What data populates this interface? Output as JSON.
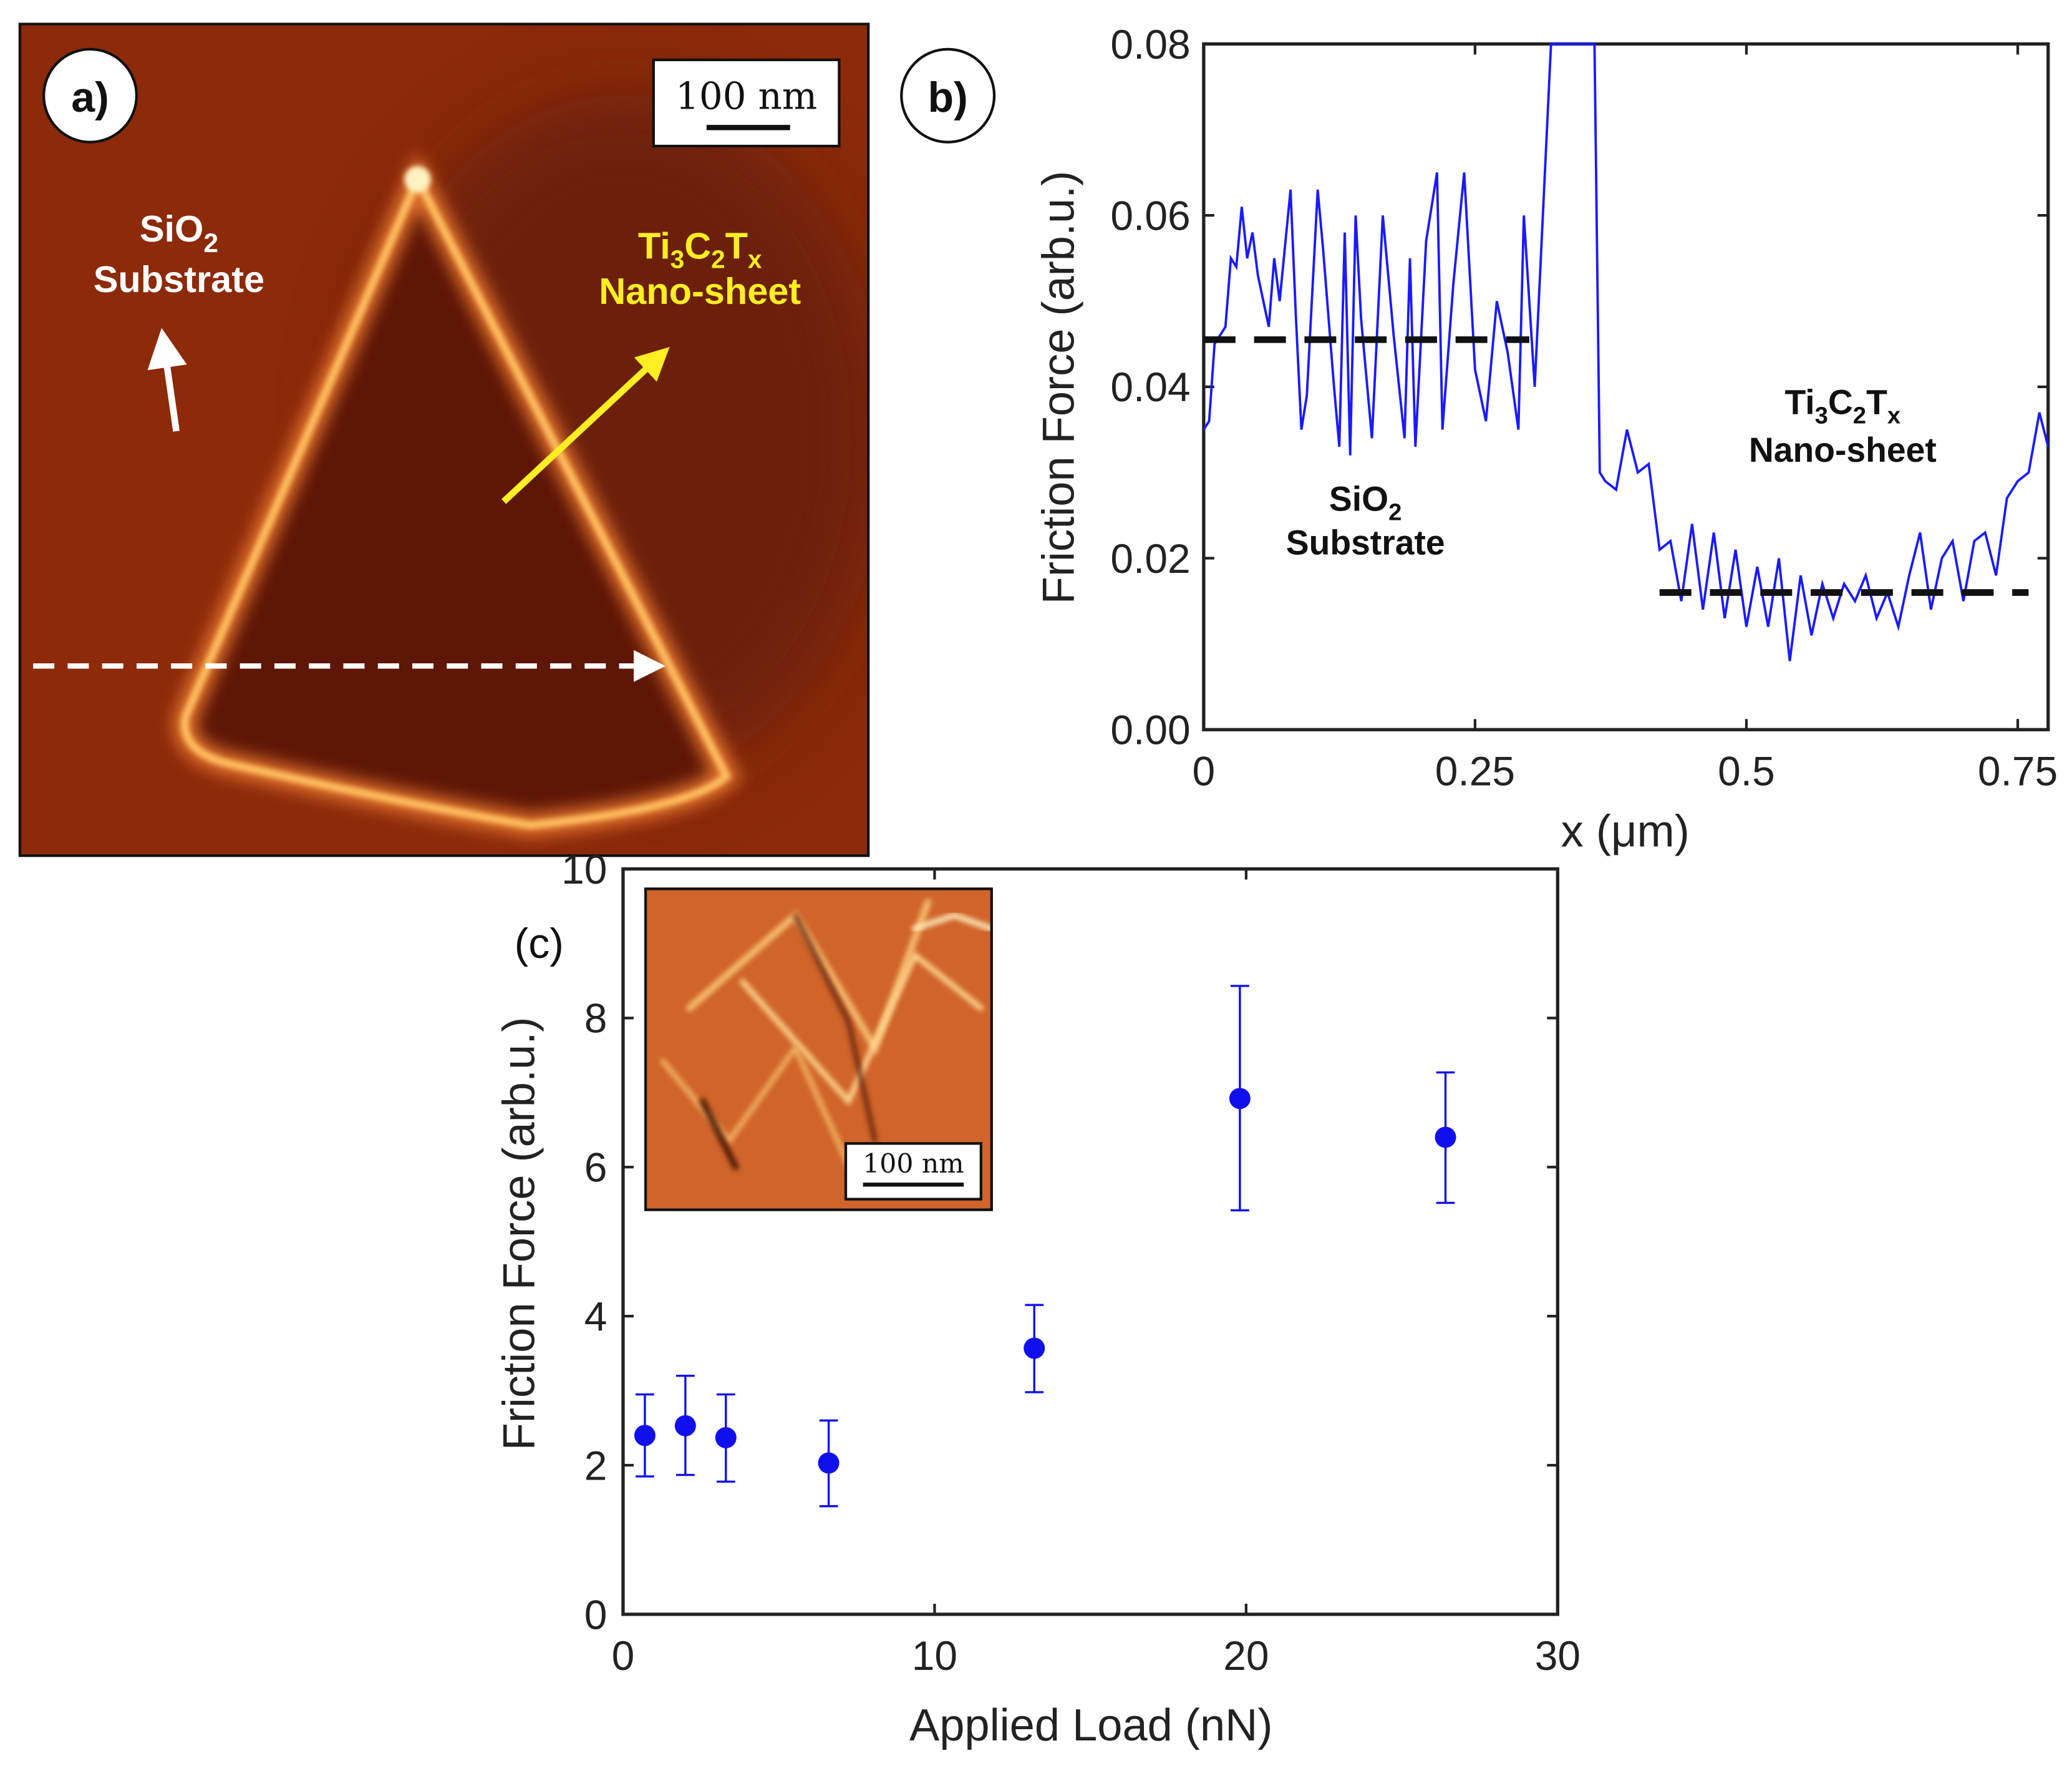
{
  "panel_a": {
    "label": "a)",
    "scale_bar": "100 nm",
    "substrate_label": {
      "parts": [
        "SiO",
        "2"
      ],
      "line2": "Substrate"
    },
    "sheet_label": {
      "parts": [
        "Ti",
        "3",
        "C",
        "2",
        "T",
        "x"
      ],
      "line2": "Nano-sheet"
    },
    "colors": {
      "background": "#8c2a0a",
      "edge": "#ffc060",
      "interior": "#5e1606",
      "sheet_text": "#ffee22"
    }
  },
  "chart_data": [
    {
      "panel": "b)",
      "type": "line",
      "xlabel": "x (μm)",
      "ylabel": "Friction Force (arb.u.)",
      "xlim": [
        0,
        0.778
      ],
      "ylim": [
        0,
        0.08
      ],
      "xticks": [
        0,
        0.25,
        0.5,
        0.75
      ],
      "xtick_labels": [
        "0",
        "0.25",
        "0.5",
        "0.75"
      ],
      "yticks": [
        0,
        0.02,
        0.04,
        0.06,
        0.08
      ],
      "ytick_labels": [
        "0.00",
        "0.02",
        "0.04",
        "0.06",
        "0.08"
      ],
      "series": [
        {
          "name": "friction",
          "color": "#1a1aff",
          "x": [
            0,
            0.005,
            0.01,
            0.02,
            0.025,
            0.03,
            0.035,
            0.04,
            0.045,
            0.05,
            0.06,
            0.065,
            0.07,
            0.08,
            0.085,
            0.09,
            0.095,
            0.105,
            0.11,
            0.12,
            0.125,
            0.13,
            0.135,
            0.14,
            0.145,
            0.155,
            0.165,
            0.175,
            0.185,
            0.19,
            0.195,
            0.205,
            0.215,
            0.22,
            0.23,
            0.24,
            0.25,
            0.26,
            0.27,
            0.28,
            0.29,
            0.295,
            0.305,
            0.32,
            0.36,
            0.365,
            0.37,
            0.38,
            0.39,
            0.4,
            0.41,
            0.42,
            0.43,
            0.44,
            0.45,
            0.46,
            0.47,
            0.48,
            0.49,
            0.5,
            0.51,
            0.52,
            0.53,
            0.54,
            0.55,
            0.56,
            0.57,
            0.58,
            0.59,
            0.6,
            0.61,
            0.62,
            0.63,
            0.64,
            0.65,
            0.66,
            0.67,
            0.68,
            0.69,
            0.7,
            0.71,
            0.72,
            0.73,
            0.74,
            0.75,
            0.76,
            0.77,
            0.778
          ],
          "y": [
            0.035,
            0.036,
            0.045,
            0.047,
            0.055,
            0.054,
            0.061,
            0.055,
            0.058,
            0.053,
            0.047,
            0.055,
            0.05,
            0.063,
            0.048,
            0.035,
            0.039,
            0.063,
            0.056,
            0.04,
            0.033,
            0.058,
            0.032,
            0.06,
            0.048,
            0.034,
            0.06,
            0.046,
            0.034,
            0.055,
            0.033,
            0.057,
            0.065,
            0.035,
            0.052,
            0.065,
            0.042,
            0.036,
            0.05,
            0.044,
            0.035,
            0.06,
            0.04,
            0.08,
            0.08,
            0.03,
            0.029,
            0.028,
            0.035,
            0.03,
            0.031,
            0.021,
            0.022,
            0.015,
            0.024,
            0.014,
            0.023,
            0.013,
            0.021,
            0.012,
            0.019,
            0.012,
            0.02,
            0.008,
            0.018,
            0.011,
            0.017,
            0.013,
            0.017,
            0.015,
            0.018,
            0.013,
            0.016,
            0.012,
            0.018,
            0.023,
            0.014,
            0.02,
            0.022,
            0.015,
            0.022,
            0.023,
            0.018,
            0.027,
            0.029,
            0.03,
            0.037,
            0.033
          ]
        }
      ],
      "mean_lines": [
        {
          "region": "SiO2 substrate",
          "y": 0.0455,
          "x": [
            0,
            0.3
          ]
        },
        {
          "region": "Ti3C2Tx nano-sheet",
          "y": 0.016,
          "x": [
            0.42,
            0.76
          ]
        }
      ],
      "annotations": {
        "substrate": {
          "parts": [
            "SiO",
            "2"
          ],
          "line2": "Substrate"
        },
        "sheet": {
          "parts": [
            "Ti",
            "3",
            "C",
            "2",
            "T",
            "x"
          ],
          "line2": "Nano-sheet"
        }
      }
    },
    {
      "panel": "(c)",
      "type": "scatter",
      "xlabel": "Applied Load (nN)",
      "ylabel": "Friction Force (arb.u.)",
      "xlim": [
        0,
        30
      ],
      "ylim": [
        0,
        10
      ],
      "xticks": [
        0,
        10,
        20,
        30
      ],
      "xtick_labels": [
        "0",
        "10",
        "20",
        "30"
      ],
      "yticks": [
        0,
        2,
        4,
        6,
        8,
        10
      ],
      "ytick_labels": [
        "0",
        "2",
        "4",
        "6",
        "8",
        "10"
      ],
      "color": "#1010ee",
      "points": [
        {
          "x": 0.7,
          "y": 2.4,
          "ylow": 1.85,
          "yhigh": 2.95
        },
        {
          "x": 2.0,
          "y": 2.53,
          "ylow": 1.87,
          "yhigh": 3.2
        },
        {
          "x": 3.3,
          "y": 2.37,
          "ylow": 1.78,
          "yhigh": 2.95
        },
        {
          "x": 6.6,
          "y": 2.03,
          "ylow": 1.45,
          "yhigh": 2.6
        },
        {
          "x": 13.2,
          "y": 3.57,
          "ylow": 2.98,
          "yhigh": 4.15
        },
        {
          "x": 19.8,
          "y": 6.92,
          "ylow": 5.42,
          "yhigh": 8.43
        },
        {
          "x": 26.4,
          "y": 6.4,
          "ylow": 5.52,
          "yhigh": 7.27
        }
      ],
      "inset_scale_bar": "100 nm"
    }
  ]
}
